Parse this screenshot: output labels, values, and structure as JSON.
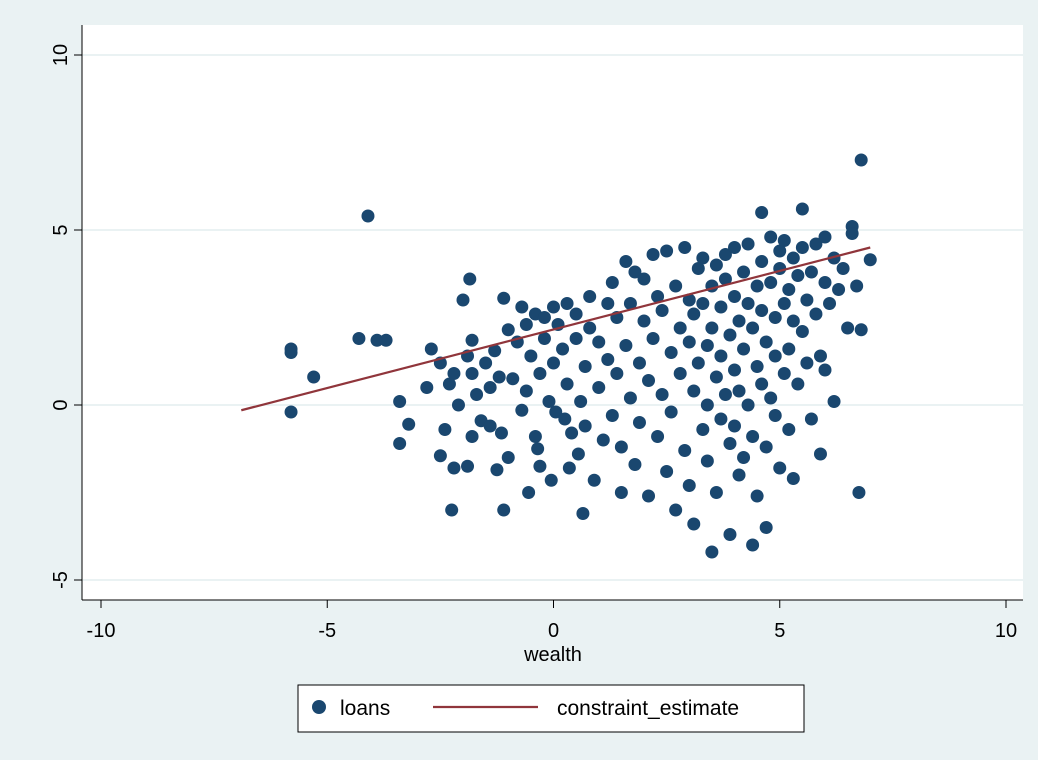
{
  "chart_data": {
    "type": "scatter",
    "title": "",
    "xlabel": "wealth",
    "ylabel": "",
    "xlim": [
      -10.5,
      10.5
    ],
    "ylim": [
      -5.5,
      10.5
    ],
    "xticks": [
      -10,
      -5,
      0,
      5,
      10
    ],
    "yticks": [
      -5,
      0,
      5,
      10
    ],
    "x_tick_labels": [
      "-10",
      "-5",
      "0",
      "5",
      "10"
    ],
    "y_tick_labels": [
      "-5",
      "0",
      "5",
      "10"
    ],
    "grid": "horizontal",
    "legend_position": "bottom",
    "colors": {
      "outer_background": "#eaf2f3",
      "plot_background": "#ffffff",
      "gridline": "#eaf2f3",
      "axis": "#000000",
      "points": "#1a476f",
      "line": "#90353b"
    },
    "series": [
      {
        "name": "loans",
        "kind": "scatter",
        "note": "Representative sample of the visible points (over 1000 overlapping points in the original).",
        "points": [
          [
            -5.8,
            1.6
          ],
          [
            -5.8,
            1.5
          ],
          [
            -5.8,
            -0.2
          ],
          [
            -5.3,
            0.8
          ],
          [
            -4.3,
            1.9
          ],
          [
            -4.1,
            5.4
          ],
          [
            -3.9,
            1.85
          ],
          [
            -3.7,
            1.85
          ],
          [
            -3.4,
            0.1
          ],
          [
            -3.4,
            -1.1
          ],
          [
            -3.2,
            -0.55
          ],
          [
            -2.8,
            0.5
          ],
          [
            -2.7,
            1.6
          ],
          [
            -2.5,
            1.2
          ],
          [
            -2.5,
            -1.45
          ],
          [
            -2.4,
            -0.7
          ],
          [
            -2.3,
            0.6
          ],
          [
            -2.25,
            -3.0
          ],
          [
            -2.2,
            0.9
          ],
          [
            -2.2,
            -1.8
          ],
          [
            -2.1,
            0.0
          ],
          [
            -2.0,
            3.0
          ],
          [
            -1.9,
            1.4
          ],
          [
            -1.9,
            -1.75
          ],
          [
            -1.85,
            3.6
          ],
          [
            -1.8,
            1.85
          ],
          [
            -1.8,
            0.9
          ],
          [
            -1.8,
            -0.9
          ],
          [
            -1.7,
            0.3
          ],
          [
            -1.6,
            -0.45
          ],
          [
            -1.5,
            1.2
          ],
          [
            -1.4,
            0.5
          ],
          [
            -1.4,
            -0.6
          ],
          [
            -1.3,
            1.55
          ],
          [
            -1.25,
            -1.85
          ],
          [
            -1.2,
            0.8
          ],
          [
            -1.15,
            -0.8
          ],
          [
            -1.1,
            3.05
          ],
          [
            -1.1,
            -3.0
          ],
          [
            -1.0,
            2.15
          ],
          [
            -1.0,
            -1.5
          ],
          [
            -0.9,
            0.75
          ],
          [
            -0.8,
            1.8
          ],
          [
            -0.7,
            2.8
          ],
          [
            -0.7,
            -0.15
          ],
          [
            -0.6,
            2.3
          ],
          [
            -0.6,
            0.4
          ],
          [
            -0.55,
            -2.5
          ],
          [
            -0.5,
            1.4
          ],
          [
            -0.4,
            2.6
          ],
          [
            -0.4,
            -0.9
          ],
          [
            -0.35,
            -1.25
          ],
          [
            -0.3,
            0.9
          ],
          [
            -0.3,
            -1.75
          ],
          [
            -0.2,
            1.9
          ],
          [
            -0.2,
            2.5
          ],
          [
            -0.1,
            0.1
          ],
          [
            -0.05,
            -2.15
          ],
          [
            0.0,
            2.8
          ],
          [
            0.0,
            1.2
          ],
          [
            0.05,
            -0.2
          ],
          [
            0.1,
            2.3
          ],
          [
            0.2,
            1.6
          ],
          [
            0.25,
            -0.4
          ],
          [
            0.3,
            2.9
          ],
          [
            0.3,
            0.6
          ],
          [
            0.35,
            -1.8
          ],
          [
            0.4,
            -0.8
          ],
          [
            0.5,
            1.9
          ],
          [
            0.5,
            2.6
          ],
          [
            0.55,
            -1.4
          ],
          [
            0.6,
            0.1
          ],
          [
            0.65,
            -3.1
          ],
          [
            0.7,
            1.1
          ],
          [
            0.7,
            -0.6
          ],
          [
            0.8,
            2.2
          ],
          [
            0.8,
            3.1
          ],
          [
            0.9,
            -2.15
          ],
          [
            1.0,
            0.5
          ],
          [
            1.0,
            1.8
          ],
          [
            1.1,
            -1.0
          ],
          [
            1.2,
            2.9
          ],
          [
            1.2,
            1.3
          ],
          [
            1.3,
            -0.3
          ],
          [
            1.3,
            3.5
          ],
          [
            1.4,
            0.9
          ],
          [
            1.4,
            2.5
          ],
          [
            1.5,
            -2.5
          ],
          [
            1.5,
            -1.2
          ],
          [
            1.6,
            4.1
          ],
          [
            1.6,
            1.7
          ],
          [
            1.7,
            0.2
          ],
          [
            1.7,
            2.9
          ],
          [
            1.8,
            -1.7
          ],
          [
            1.8,
            3.8
          ],
          [
            1.9,
            1.2
          ],
          [
            1.9,
            -0.5
          ],
          [
            2.0,
            2.4
          ],
          [
            2.0,
            3.6
          ],
          [
            2.1,
            0.7
          ],
          [
            2.1,
            -2.6
          ],
          [
            2.2,
            4.3
          ],
          [
            2.2,
            1.9
          ],
          [
            2.3,
            -0.9
          ],
          [
            2.3,
            3.1
          ],
          [
            2.4,
            0.3
          ],
          [
            2.4,
            2.7
          ],
          [
            2.5,
            -1.9
          ],
          [
            2.5,
            4.4
          ],
          [
            2.6,
            1.5
          ],
          [
            2.6,
            -0.2
          ],
          [
            2.7,
            3.4
          ],
          [
            2.7,
            -3.0
          ],
          [
            2.8,
            2.2
          ],
          [
            2.8,
            0.9
          ],
          [
            2.9,
            4.5
          ],
          [
            2.9,
            -1.3
          ],
          [
            3.0,
            1.8
          ],
          [
            3.0,
            3.0
          ],
          [
            3.0,
            -2.3
          ],
          [
            3.1,
            0.4
          ],
          [
            3.1,
            2.6
          ],
          [
            3.1,
            -3.4
          ],
          [
            3.2,
            3.9
          ],
          [
            3.2,
            1.2
          ],
          [
            3.3,
            -0.7
          ],
          [
            3.3,
            2.9
          ],
          [
            3.3,
            4.2
          ],
          [
            3.4,
            0.0
          ],
          [
            3.4,
            1.7
          ],
          [
            3.4,
            -1.6
          ],
          [
            3.5,
            3.4
          ],
          [
            3.5,
            2.2
          ],
          [
            3.5,
            -4.2
          ],
          [
            3.6,
            0.8
          ],
          [
            3.6,
            4.0
          ],
          [
            3.6,
            -2.5
          ],
          [
            3.7,
            1.4
          ],
          [
            3.7,
            2.8
          ],
          [
            3.7,
            -0.4
          ],
          [
            3.8,
            3.6
          ],
          [
            3.8,
            0.3
          ],
          [
            3.8,
            4.3
          ],
          [
            3.9,
            2.0
          ],
          [
            3.9,
            -1.1
          ],
          [
            3.9,
            -3.7
          ],
          [
            4.0,
            3.1
          ],
          [
            4.0,
            1.0
          ],
          [
            4.0,
            -0.6
          ],
          [
            4.0,
            4.5
          ],
          [
            4.1,
            2.4
          ],
          [
            4.1,
            -2.0
          ],
          [
            4.1,
            0.4
          ],
          [
            4.2,
            3.8
          ],
          [
            4.2,
            1.6
          ],
          [
            4.2,
            -1.5
          ],
          [
            4.3,
            2.9
          ],
          [
            4.3,
            0.0
          ],
          [
            4.3,
            4.6
          ],
          [
            4.4,
            2.2
          ],
          [
            4.4,
            -0.9
          ],
          [
            4.4,
            -4.0
          ],
          [
            4.5,
            3.4
          ],
          [
            4.5,
            1.1
          ],
          [
            4.5,
            -2.6
          ],
          [
            4.6,
            4.1
          ],
          [
            4.6,
            2.7
          ],
          [
            4.6,
            0.6
          ],
          [
            4.6,
            5.5
          ],
          [
            4.7,
            1.8
          ],
          [
            4.7,
            -1.2
          ],
          [
            4.7,
            -3.5
          ],
          [
            4.8,
            3.5
          ],
          [
            4.8,
            0.2
          ],
          [
            4.8,
            4.8
          ],
          [
            4.9,
            2.5
          ],
          [
            4.9,
            -0.3
          ],
          [
            4.9,
            1.4
          ],
          [
            5.0,
            3.9
          ],
          [
            5.0,
            4.4
          ],
          [
            5.0,
            -1.8
          ],
          [
            5.1,
            2.9
          ],
          [
            5.1,
            0.9
          ],
          [
            5.1,
            4.7
          ],
          [
            5.2,
            3.3
          ],
          [
            5.2,
            1.6
          ],
          [
            5.2,
            -0.7
          ],
          [
            5.3,
            4.2
          ],
          [
            5.3,
            2.4
          ],
          [
            5.3,
            -2.1
          ],
          [
            5.4,
            3.7
          ],
          [
            5.4,
            0.6
          ],
          [
            5.5,
            2.1
          ],
          [
            5.5,
            4.5
          ],
          [
            5.5,
            5.6
          ],
          [
            5.6,
            3.0
          ],
          [
            5.6,
            1.2
          ],
          [
            5.7,
            3.8
          ],
          [
            5.7,
            -0.4
          ],
          [
            5.8,
            2.6
          ],
          [
            5.8,
            4.6
          ],
          [
            5.9,
            1.4
          ],
          [
            5.9,
            -1.4
          ],
          [
            6.0,
            3.5
          ],
          [
            6.0,
            4.8
          ],
          [
            6.0,
            1.0
          ],
          [
            6.1,
            2.9
          ],
          [
            6.2,
            4.2
          ],
          [
            6.2,
            0.1
          ],
          [
            6.3,
            3.3
          ],
          [
            6.4,
            3.9
          ],
          [
            6.5,
            2.2
          ],
          [
            6.6,
            5.1
          ],
          [
            6.6,
            4.9
          ],
          [
            6.7,
            3.4
          ],
          [
            6.75,
            -2.5
          ],
          [
            6.8,
            2.15
          ],
          [
            6.8,
            7.0
          ],
          [
            7.0,
            4.15
          ]
        ]
      },
      {
        "name": "constraint_estimate",
        "kind": "line",
        "x": [
          -6.9,
          7.0
        ],
        "y": [
          -0.15,
          4.5
        ]
      }
    ]
  }
}
